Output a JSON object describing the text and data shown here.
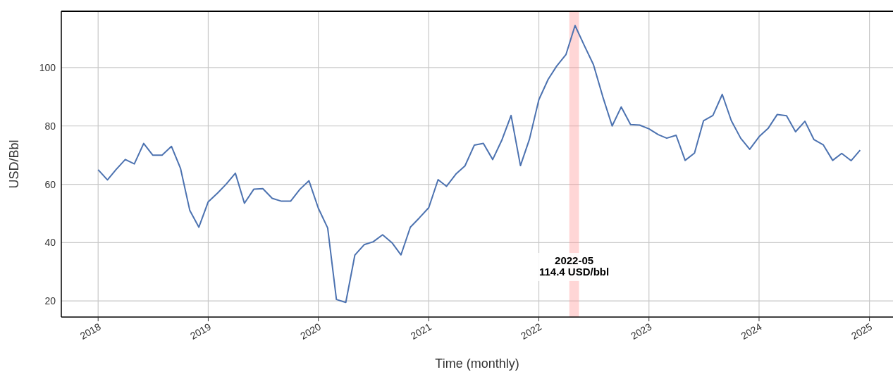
{
  "chart_data": {
    "type": "line",
    "xlabel": "Time (monthly)",
    "ylabel": "USD/Bbl",
    "x": [
      "2018-01",
      "2018-02",
      "2018-03",
      "2018-04",
      "2018-05",
      "2018-06",
      "2018-07",
      "2018-08",
      "2018-09",
      "2018-10",
      "2018-11",
      "2018-12",
      "2019-01",
      "2019-02",
      "2019-03",
      "2019-04",
      "2019-05",
      "2019-06",
      "2019-07",
      "2019-08",
      "2019-09",
      "2019-10",
      "2019-11",
      "2019-12",
      "2020-01",
      "2020-02",
      "2020-03",
      "2020-04",
      "2020-05",
      "2020-06",
      "2020-07",
      "2020-08",
      "2020-09",
      "2020-10",
      "2020-11",
      "2020-12",
      "2021-01",
      "2021-02",
      "2021-03",
      "2021-04",
      "2021-05",
      "2021-06",
      "2021-07",
      "2021-08",
      "2021-09",
      "2021-10",
      "2021-11",
      "2021-12",
      "2022-01",
      "2022-02",
      "2022-03",
      "2022-04",
      "2022-05",
      "2022-06",
      "2022-07",
      "2022-08",
      "2022-09",
      "2022-10",
      "2022-11",
      "2022-12",
      "2023-01",
      "2023-02",
      "2023-03",
      "2023-04",
      "2023-05",
      "2023-06",
      "2023-07",
      "2023-08",
      "2023-09",
      "2023-10",
      "2023-11",
      "2023-12",
      "2024-01",
      "2024-02",
      "2024-03",
      "2024-04",
      "2024-05",
      "2024-06",
      "2024-07",
      "2024-08",
      "2024-09",
      "2024-10",
      "2024-11",
      "2024-12"
    ],
    "series": [
      {
        "color": "#4c72b0",
        "values": [
          65,
          61.5,
          65,
          68.5,
          67,
          74,
          70,
          70,
          73,
          65.5,
          51,
          45.3,
          54,
          57,
          60,
          63.8,
          53.5,
          58.3,
          58.5,
          55.2,
          54.2,
          54.2,
          58.3,
          61.2,
          51.8,
          45,
          20.5,
          19.5,
          35.7,
          39.3,
          40.3,
          42.7,
          40,
          35.8,
          45.3,
          48.5,
          52,
          61.6,
          59.3,
          63.5,
          66.3,
          73.4,
          74,
          68.5,
          75.3,
          83.6,
          66.4,
          75.5,
          89,
          96,
          100.5,
          104.5,
          114.4,
          107.5,
          101,
          90,
          80,
          86.5,
          80.5,
          80.3,
          79,
          77,
          75.8,
          76.8,
          68.2,
          70.7,
          81.8,
          83.6,
          90.8,
          81.8,
          75.8,
          72,
          76.3,
          79.3,
          83.9,
          83.5,
          78,
          81.6,
          75.3,
          73.5,
          68.2,
          70.6,
          68.1,
          71.7
        ]
      }
    ],
    "xlim": [
      "2017-09-01",
      "2025-03-20"
    ],
    "xticks": [
      "2018",
      "2019",
      "2020",
      "2021",
      "2022",
      "2023",
      "2024",
      "2025"
    ],
    "ylim": [
      14.5,
      119.3
    ],
    "yticks": [
      20,
      40,
      60,
      80,
      100
    ],
    "bands": [
      {
        "axis": "x",
        "from": "2022-04-12",
        "to": "2022-05-14",
        "color": "#ff9999"
      }
    ],
    "annotations": [
      "2022-05\n114.4 USD/bbl"
    ],
    "grid": true,
    "marker": "none",
    "line_style": "solid"
  }
}
